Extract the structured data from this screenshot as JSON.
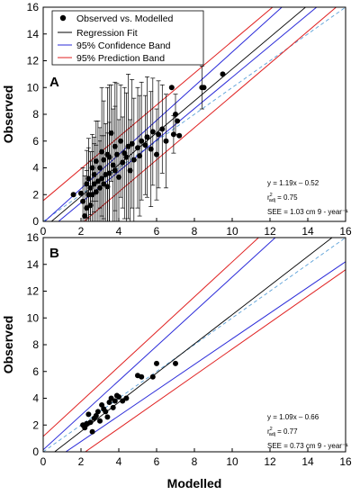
{
  "chart_data": [
    {
      "type": "scatter",
      "panel_label": "A",
      "xlabel": "",
      "ylabel": "Observed",
      "xlim": [
        0,
        16
      ],
      "ylim": [
        0,
        16
      ],
      "xticks": [
        "0",
        "2",
        "4",
        "6",
        "8",
        "10",
        "12",
        "14",
        "16"
      ],
      "yticks": [
        "0",
        "2",
        "4",
        "6",
        "8",
        "10",
        "12",
        "14",
        "16"
      ],
      "grid": false,
      "legend": {
        "placement": "top-left",
        "entries": [
          {
            "label": "Observed vs. Modelled",
            "color": "#000000",
            "symbol": "circle"
          },
          {
            "label": "Regression Fit",
            "color": "#000000",
            "symbol": "line"
          },
          {
            "label": "95% Confidence Band",
            "color": "#2b2bd9",
            "symbol": "line"
          },
          {
            "label": "95% Prediction Band",
            "color": "#e02020",
            "symbol": "line"
          }
        ]
      },
      "annotation": {
        "equation": "y = 1.19x – 0.52",
        "r2_base": "r",
        "r2_sup": "2",
        "r2_sub": "adj",
        "r2_value": "= 0.75",
        "see": "SEE = 1.03 cm 9 - year⁻¹"
      },
      "regression": {
        "slope": 1.19,
        "intercept": -0.52
      },
      "confidence_band": {
        "lower": [
          [
            0,
            -0.95
          ],
          [
            16,
            17.8
          ]
        ],
        "upper": [
          [
            0,
            -0.1
          ],
          [
            16,
            20.3
          ]
        ]
      },
      "prediction_band": {
        "lower": [
          [
            0,
            -2.6
          ],
          [
            16,
            16.6
          ]
        ],
        "upper": [
          [
            0,
            1.55
          ],
          [
            16,
            20.6
          ]
        ]
      },
      "one_to_one": true,
      "series": [
        {
          "x": [
            1.6,
            2.0,
            2.1,
            2.2,
            2.3,
            2.3,
            2.4,
            2.4,
            2.5,
            2.5,
            2.6,
            2.6,
            2.7,
            2.7,
            2.8,
            2.8,
            2.9,
            3.0,
            3.0,
            3.1,
            3.1,
            3.2,
            3.2,
            3.3,
            3.4,
            3.4,
            3.5,
            3.5,
            3.6,
            3.7,
            3.8,
            3.8,
            3.9,
            4.0,
            4.1,
            4.2,
            4.3,
            4.4,
            4.5,
            4.6,
            4.7,
            4.8,
            5.0,
            5.1,
            5.2,
            5.4,
            5.5,
            5.7,
            5.8,
            6.0,
            6.1,
            6.3,
            6.5,
            6.8,
            6.9,
            7.0,
            7.1,
            7.2,
            8.2,
            8.4,
            8.5,
            9.5
          ],
          "y": [
            2.0,
            2.1,
            1.5,
            0.4,
            1.0,
            2.8,
            2.0,
            3.2,
            1.2,
            2.5,
            2.0,
            4.0,
            2.8,
            3.5,
            2.2,
            4.5,
            3.0,
            2.5,
            4.0,
            3.2,
            5.2,
            2.8,
            4.6,
            3.5,
            5.0,
            2.6,
            3.6,
            4.8,
            6.6,
            4.2,
            3.8,
            5.6,
            5.0,
            3.3,
            6.0,
            4.4,
            5.1,
            4.8,
            5.6,
            3.8,
            5.8,
            4.6,
            5.5,
            4.9,
            6.0,
            5.7,
            6.3,
            5.4,
            6.7,
            5.0,
            6.5,
            6.9,
            6.0,
            10.0,
            6.5,
            8.0,
            7.5,
            6.4,
            12.0,
            10.0,
            10.0,
            11.0
          ],
          "yerr": [
            0,
            0,
            2.5,
            3.0,
            2.8,
            2.5,
            3.5,
            3.0,
            4.0,
            2.0,
            3.2,
            2.5,
            3.0,
            2.8,
            3.5,
            3.0,
            4.5,
            3.5,
            3.0,
            3.2,
            4.8,
            3.6,
            4.4,
            3.8,
            5.0,
            4.0,
            3.8,
            5.4,
            3.6,
            4.2,
            4.8,
            4.8,
            5.3,
            4.3,
            4.2,
            3.4,
            4.9,
            4.8,
            5.4,
            3.8,
            4.8,
            4.6,
            4.5,
            4.5,
            4.4,
            3.7,
            4.5,
            4.3,
            4.0,
            3.4,
            4.0,
            3.3,
            3.5,
            0,
            1.4,
            1.5,
            0,
            0,
            0,
            1.6,
            0,
            0
          ]
        }
      ]
    },
    {
      "type": "scatter",
      "panel_label": "B",
      "xlabel": "Modelled",
      "ylabel": "Observed",
      "xlim": [
        0,
        16
      ],
      "ylim": [
        0,
        16
      ],
      "xticks": [
        "0",
        "2",
        "4",
        "6",
        "8",
        "10",
        "12",
        "14",
        "16"
      ],
      "yticks": [
        "0",
        "2",
        "4",
        "6",
        "8",
        "10",
        "12",
        "14",
        "16"
      ],
      "grid": false,
      "annotation": {
        "equation": "y = 1.09x – 0.66",
        "r2_base": "r",
        "r2_sup": "2",
        "r2_sub": "adj",
        "r2_value": "= 0.77",
        "see": "SEE = 0.73 cm 9 - year⁻¹"
      },
      "regression": {
        "slope": 1.09,
        "intercept": -0.66
      },
      "confidence_band": {
        "lower": [
          [
            0,
            -1.15
          ],
          [
            16,
            14.2
          ]
        ],
        "upper": [
          [
            0,
            0.15
          ],
          [
            16,
            20.8
          ]
        ]
      },
      "prediction_band": {
        "lower": [
          [
            0,
            -2.2
          ],
          [
            16,
            13.6
          ]
        ],
        "upper": [
          [
            0,
            1.15
          ],
          [
            16,
            22.0
          ]
        ]
      },
      "one_to_one": true,
      "series": [
        {
          "x": [
            2.1,
            2.2,
            2.3,
            2.4,
            2.5,
            2.6,
            2.7,
            2.8,
            2.9,
            3.0,
            3.1,
            3.2,
            3.3,
            3.4,
            3.5,
            3.6,
            3.7,
            3.8,
            3.9,
            4.0,
            4.2,
            4.4,
            5.0,
            5.2,
            5.8,
            6.0,
            7.0
          ],
          "y": [
            2.0,
            1.8,
            2.1,
            2.8,
            2.2,
            1.5,
            2.5,
            2.7,
            3.0,
            2.3,
            3.5,
            3.2,
            3.0,
            2.6,
            3.7,
            4.0,
            3.3,
            3.8,
            4.2,
            4.1,
            3.8,
            4.0,
            5.7,
            5.6,
            5.6,
            6.6,
            6.6
          ]
        }
      ]
    }
  ]
}
